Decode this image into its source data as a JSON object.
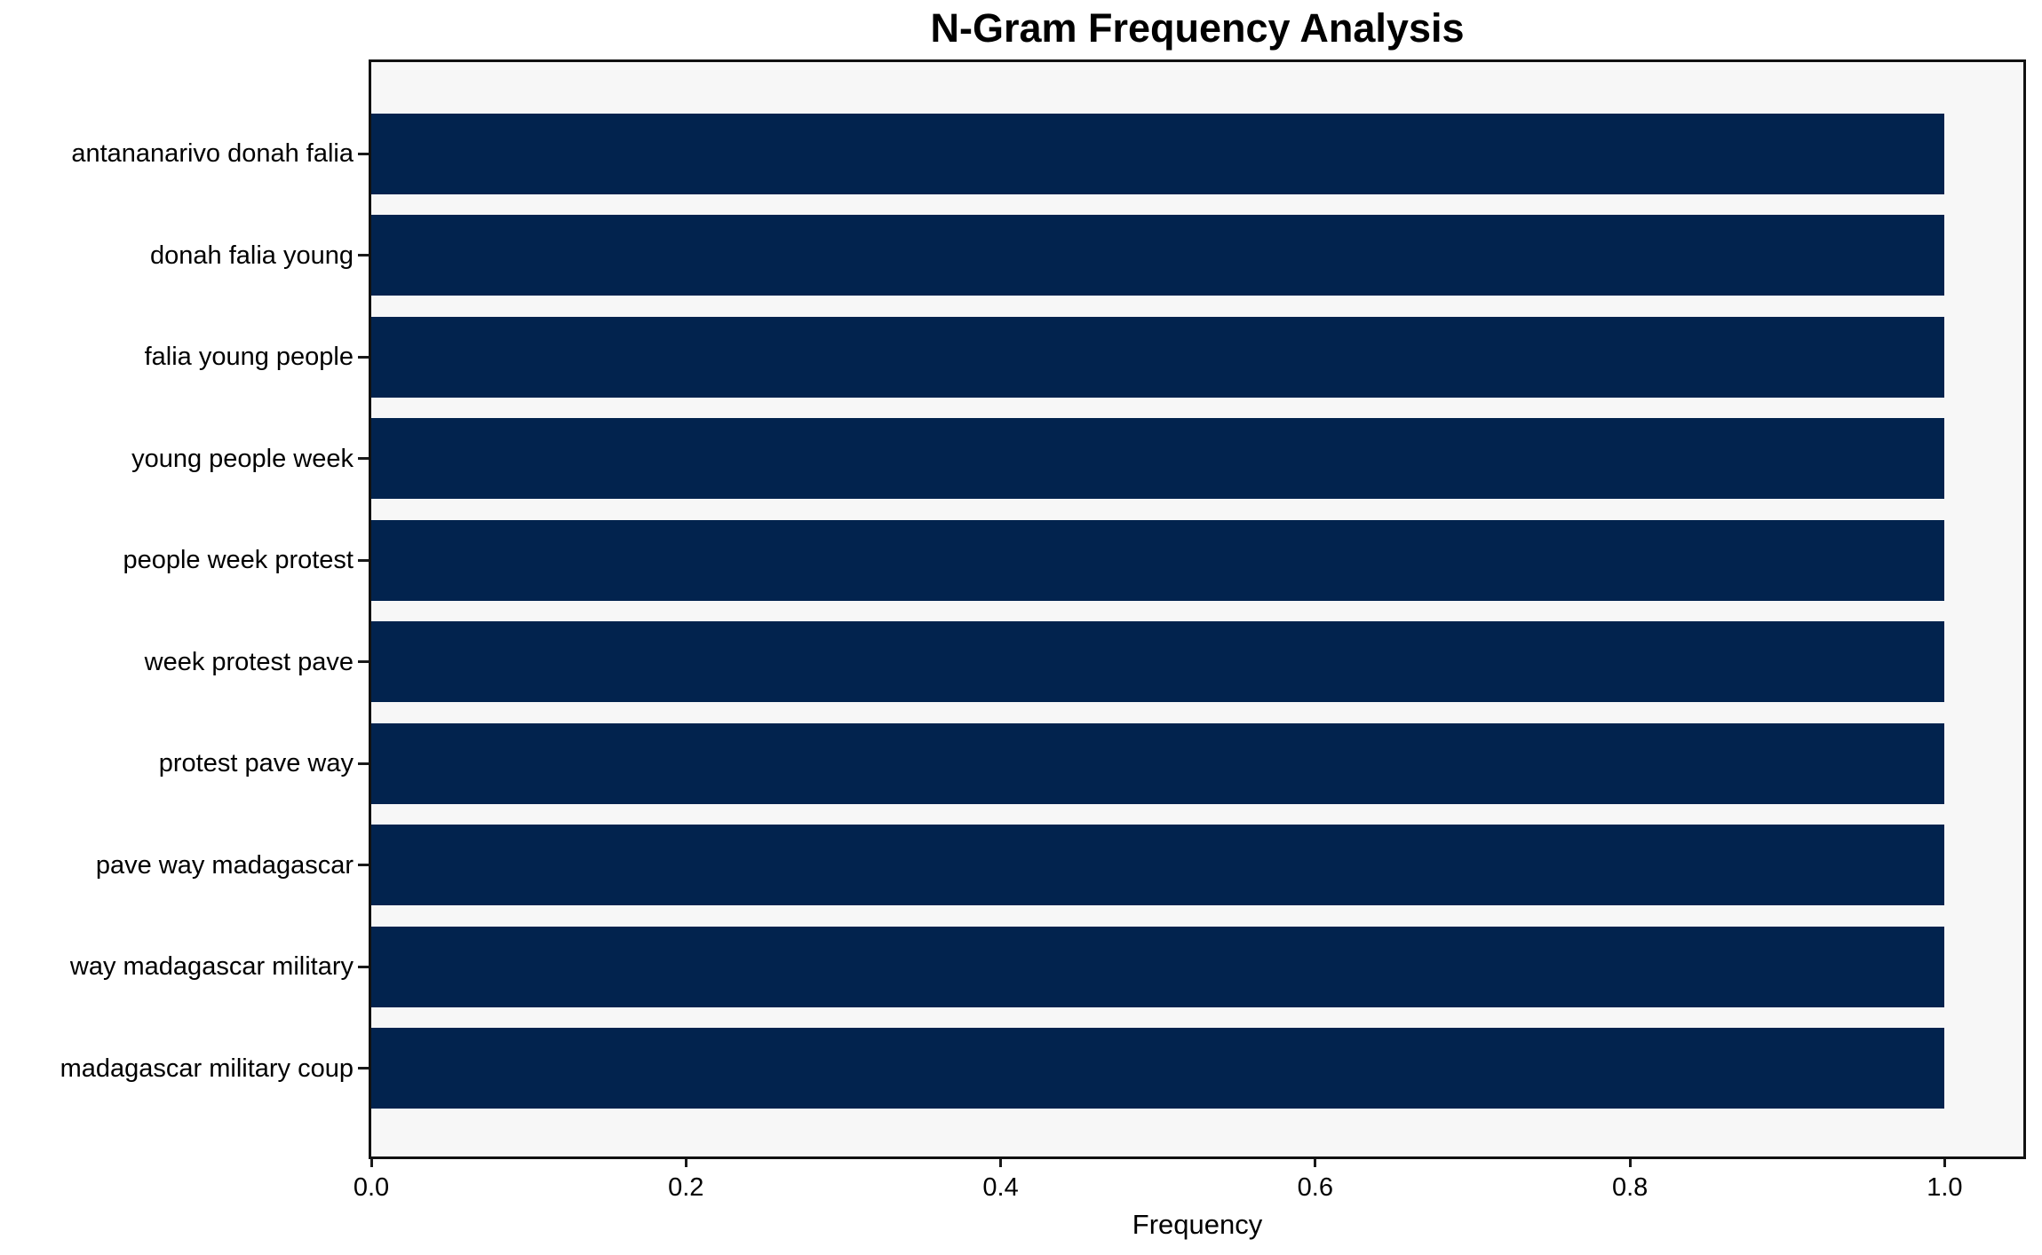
{
  "chart_data": {
    "type": "bar",
    "orientation": "horizontal",
    "title": "N-Gram Frequency Analysis",
    "xlabel": "Frequency",
    "ylabel": "",
    "categories": [
      "antananarivo donah falia",
      "donah falia young",
      "falia young people",
      "young people week",
      "people week protest",
      "week protest pave",
      "protest pave way",
      "pave way madagascar",
      "way madagascar military",
      "madagascar military coup"
    ],
    "values": [
      1.0,
      1.0,
      1.0,
      1.0,
      1.0,
      1.0,
      1.0,
      1.0,
      1.0,
      1.0
    ],
    "xlim": [
      0,
      1.05
    ],
    "xticks": [
      0.0,
      0.2,
      0.4,
      0.6,
      0.8,
      1.0
    ],
    "xtick_labels": [
      "0.0",
      "0.2",
      "0.4",
      "0.6",
      "0.8",
      "1.0"
    ],
    "grid": false,
    "legend": null,
    "colors": {
      "bar": "#02234e",
      "plot_background": "#f7f7f7",
      "figure_background": "#ffffff",
      "spine": "#111111",
      "text": "#000000"
    }
  }
}
